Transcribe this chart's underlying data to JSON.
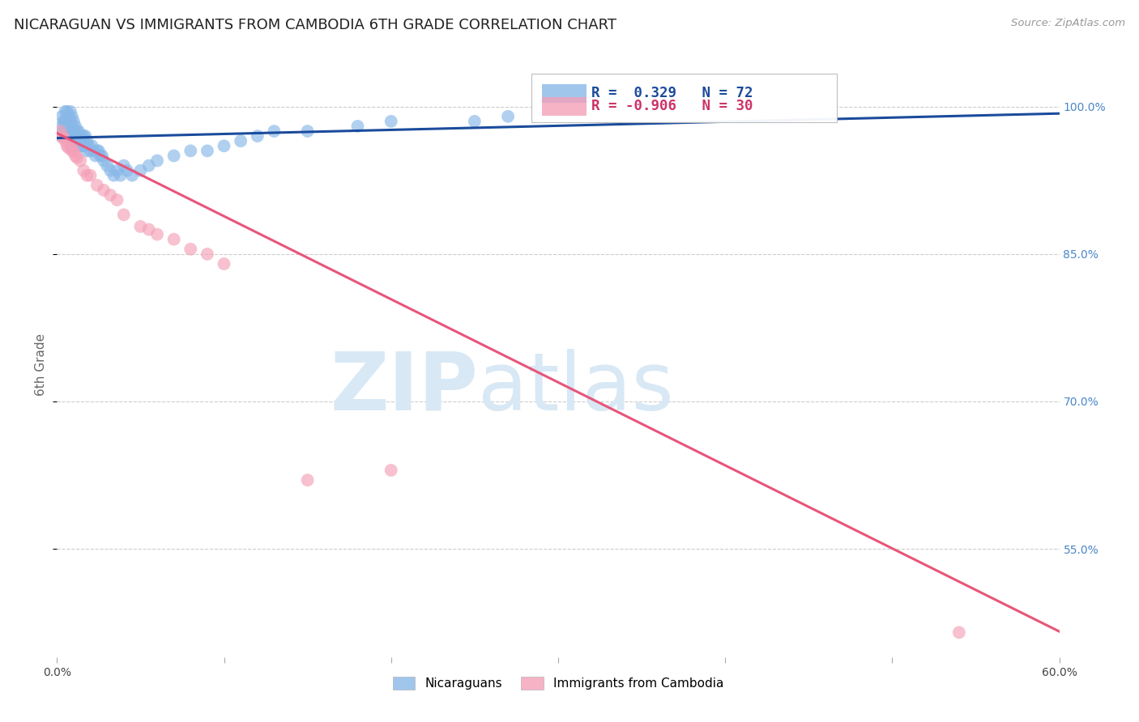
{
  "title": "NICARAGUAN VS IMMIGRANTS FROM CAMBODIA 6TH GRADE CORRELATION CHART",
  "source": "Source: ZipAtlas.com",
  "ylabel_label": "6th Grade",
  "xmin": 0.0,
  "xmax": 0.6,
  "ymin": 0.44,
  "ymax": 1.035,
  "blue_R": 0.329,
  "blue_N": 72,
  "pink_R": -0.906,
  "pink_N": 30,
  "blue_color": "#88b8e8",
  "pink_color": "#f4a0b8",
  "blue_line_color": "#1a4b9c",
  "pink_line_color": "#e8557a",
  "grid_color": "#cccccc",
  "background_color": "#ffffff",
  "watermark_zip": "ZIP",
  "watermark_atlas": "atlas",
  "watermark_color": "#d8e8f5",
  "ytick_vals": [
    1.0,
    0.85,
    0.7,
    0.55
  ],
  "ytick_labels": [
    "100.0%",
    "85.0%",
    "70.0%",
    "55.0%"
  ],
  "xtick_vals": [
    0.0,
    0.1,
    0.2,
    0.3,
    0.4,
    0.5,
    0.6
  ],
  "xtick_labels": [
    "0.0%",
    "",
    "",
    "",
    "",
    "",
    "60.0%"
  ],
  "blue_x": [
    0.002,
    0.003,
    0.003,
    0.004,
    0.004,
    0.005,
    0.005,
    0.005,
    0.006,
    0.006,
    0.006,
    0.007,
    0.007,
    0.007,
    0.008,
    0.008,
    0.008,
    0.009,
    0.009,
    0.009,
    0.01,
    0.01,
    0.01,
    0.011,
    0.011,
    0.012,
    0.012,
    0.013,
    0.013,
    0.014,
    0.014,
    0.015,
    0.015,
    0.016,
    0.016,
    0.017,
    0.017,
    0.018,
    0.018,
    0.019,
    0.02,
    0.021,
    0.022,
    0.023,
    0.024,
    0.025,
    0.026,
    0.027,
    0.028,
    0.03,
    0.032,
    0.034,
    0.036,
    0.038,
    0.04,
    0.042,
    0.045,
    0.05,
    0.055,
    0.06,
    0.07,
    0.08,
    0.09,
    0.1,
    0.11,
    0.12,
    0.13,
    0.15,
    0.18,
    0.2,
    0.25,
    0.27
  ],
  "blue_y": [
    0.97,
    0.98,
    0.99,
    0.975,
    0.985,
    0.975,
    0.985,
    0.995,
    0.975,
    0.985,
    0.995,
    0.97,
    0.98,
    0.99,
    0.975,
    0.985,
    0.995,
    0.975,
    0.98,
    0.99,
    0.965,
    0.975,
    0.985,
    0.97,
    0.98,
    0.965,
    0.975,
    0.965,
    0.975,
    0.96,
    0.97,
    0.96,
    0.97,
    0.96,
    0.97,
    0.96,
    0.97,
    0.955,
    0.965,
    0.96,
    0.955,
    0.96,
    0.955,
    0.95,
    0.955,
    0.955,
    0.95,
    0.95,
    0.945,
    0.94,
    0.935,
    0.93,
    0.935,
    0.93,
    0.94,
    0.935,
    0.93,
    0.935,
    0.94,
    0.945,
    0.95,
    0.955,
    0.955,
    0.96,
    0.965,
    0.97,
    0.975,
    0.975,
    0.98,
    0.985,
    0.985,
    0.99
  ],
  "pink_x": [
    0.002,
    0.003,
    0.004,
    0.005,
    0.006,
    0.007,
    0.008,
    0.009,
    0.01,
    0.011,
    0.012,
    0.014,
    0.016,
    0.018,
    0.02,
    0.024,
    0.028,
    0.032,
    0.036,
    0.04,
    0.05,
    0.055,
    0.06,
    0.07,
    0.08,
    0.09,
    0.1,
    0.15,
    0.2,
    0.54
  ],
  "pink_y": [
    0.975,
    0.97,
    0.968,
    0.965,
    0.96,
    0.958,
    0.96,
    0.955,
    0.955,
    0.95,
    0.948,
    0.945,
    0.935,
    0.93,
    0.93,
    0.92,
    0.915,
    0.91,
    0.905,
    0.89,
    0.878,
    0.875,
    0.87,
    0.865,
    0.855,
    0.85,
    0.84,
    0.62,
    0.63,
    0.465
  ],
  "blue_line_x": [
    0.0,
    0.6
  ],
  "blue_line_y": [
    0.968,
    0.993
  ],
  "pink_line_x": [
    0.0,
    0.6
  ],
  "pink_line_y": [
    0.973,
    0.466
  ]
}
